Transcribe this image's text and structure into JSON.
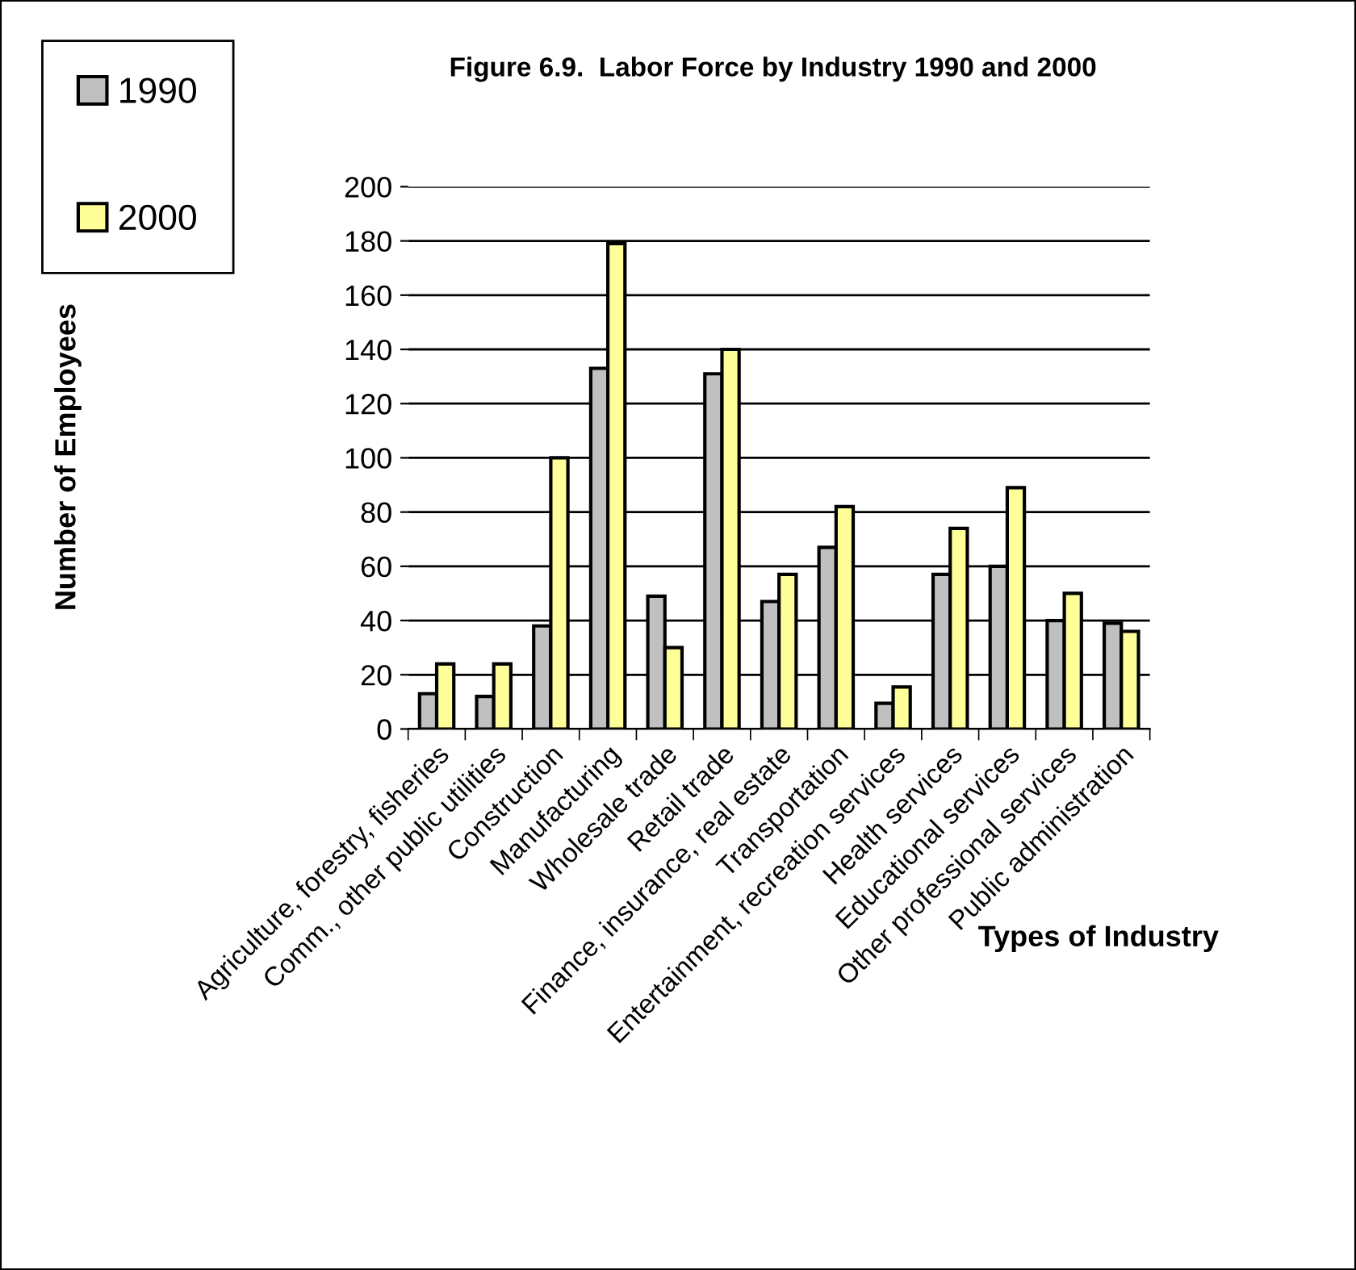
{
  "chart_data": {
    "type": "bar",
    "title": "Figure 6.9.  Labor Force by Industry 1990 and 2000",
    "xlabel": "Types of Industry",
    "ylabel": "Number of Employees",
    "categories": [
      "Agriculture, forestry, fisheries",
      "Comm., other public utilities",
      "Construction",
      "Manufacturing",
      "Wholesale trade",
      "Retail trade",
      "Finance, insurance, real estate",
      "Transportation",
      "Entertainment, recreation services",
      "Health services",
      "Educational services",
      "Other professional services",
      "Public administration"
    ],
    "series": [
      {
        "name": "1990",
        "color": "#c0c0c0",
        "values": [
          13,
          12,
          38,
          133,
          49,
          131,
          47,
          67,
          9.5,
          57,
          60,
          40,
          39
        ]
      },
      {
        "name": "2000",
        "color": "#ffff99",
        "values": [
          24,
          24,
          100,
          179,
          30,
          140,
          57,
          82,
          15.5,
          74,
          89,
          50,
          36
        ]
      }
    ],
    "ylim": [
      0,
      200
    ],
    "yticks": [
      0,
      20,
      40,
      60,
      80,
      100,
      120,
      140,
      160,
      180,
      200
    ],
    "grid": "y",
    "legend": "top left"
  }
}
